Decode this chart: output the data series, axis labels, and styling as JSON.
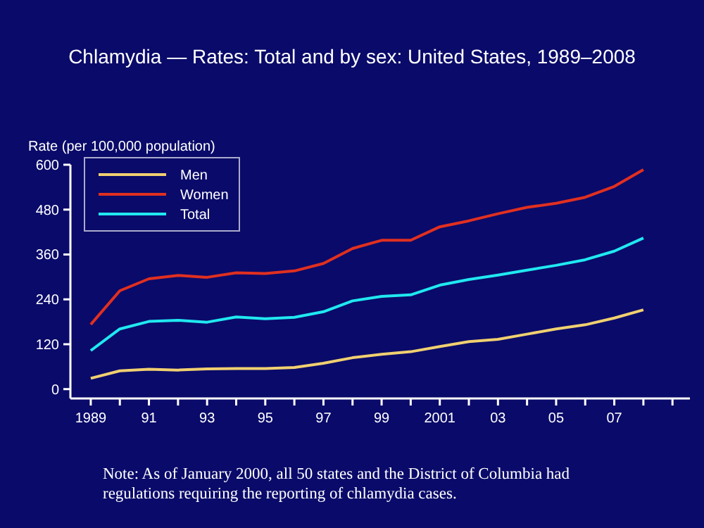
{
  "chart_data": {
    "type": "line",
    "title": "Chlamydia — Rates: Total and by sex: United States, 1989–2008",
    "ylabel": "Rate (per 100,000 population)",
    "x": [
      1989,
      1990,
      1991,
      1992,
      1993,
      1994,
      1995,
      1996,
      1997,
      1998,
      1999,
      2000,
      2001,
      2002,
      2003,
      2004,
      2005,
      2006,
      2007,
      2008
    ],
    "series": [
      {
        "name": "Men",
        "color": "#f0d070",
        "values": [
          29,
          49,
          53,
          51,
          54,
          55,
          55,
          58,
          69,
          84,
          93,
          100,
          114,
          127,
          133,
          147,
          161,
          172,
          190,
          212
        ]
      },
      {
        "name": "Women",
        "color": "#e03020",
        "values": [
          173,
          263,
          295,
          304,
          299,
          311,
          309,
          316,
          336,
          376,
          398,
          398,
          434,
          450,
          469,
          486,
          497,
          513,
          542,
          587
        ]
      },
      {
        "name": "Total",
        "color": "#20e8f0",
        "values": [
          103,
          161,
          181,
          184,
          179,
          193,
          188,
          192,
          207,
          236,
          248,
          252,
          278,
          293,
          305,
          318,
          331,
          346,
          369,
          404
        ]
      }
    ],
    "xlim": [
      1988.3,
      2009.6
    ],
    "xticks": [
      {
        "value": 1989,
        "label": "1989"
      },
      {
        "value": 1990,
        "label": null
      },
      {
        "value": 1991,
        "label": "91"
      },
      {
        "value": 1992,
        "label": null
      },
      {
        "value": 1993,
        "label": "93"
      },
      {
        "value": 1994,
        "label": null
      },
      {
        "value": 1995,
        "label": "95"
      },
      {
        "value": 1996,
        "label": null
      },
      {
        "value": 1997,
        "label": "97"
      },
      {
        "value": 1998,
        "label": null
      },
      {
        "value": 1999,
        "label": "99"
      },
      {
        "value": 2000,
        "label": null
      },
      {
        "value": 2001,
        "label": "2001"
      },
      {
        "value": 2002,
        "label": null
      },
      {
        "value": 2003,
        "label": "03"
      },
      {
        "value": 2004,
        "label": null
      },
      {
        "value": 2005,
        "label": "05"
      },
      {
        "value": 2006,
        "label": null
      },
      {
        "value": 2007,
        "label": "07"
      },
      {
        "value": 2008,
        "label": null
      },
      {
        "value": 2009,
        "label": null
      }
    ],
    "ylim": [
      -25,
      600
    ],
    "yticks": [
      0,
      120,
      240,
      360,
      480,
      600
    ],
    "legend": "top left",
    "grid": false,
    "marker": "none",
    "line_style": "solid",
    "annotations": [
      "Note: As of January 2000, all 50 states and the District of Columbia had regulations requiring the reporting of chlamydia cases."
    ]
  }
}
